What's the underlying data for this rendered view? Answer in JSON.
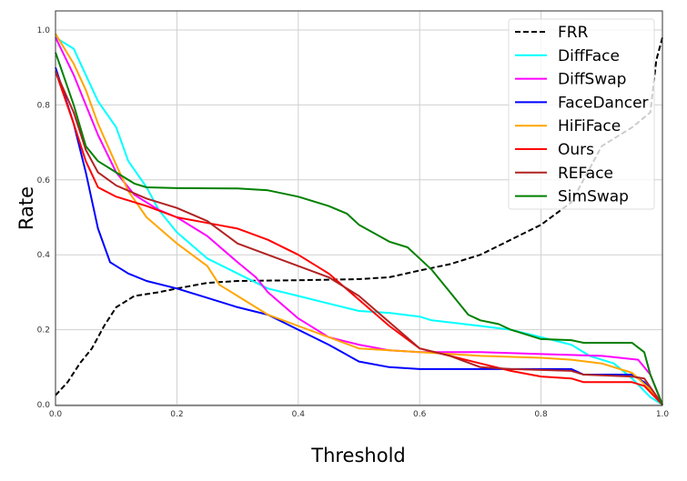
{
  "chart_data": {
    "type": "line",
    "title": "",
    "xlabel": "Threshold",
    "ylabel": "Rate",
    "xlim": [
      0,
      1
    ],
    "ylim": [
      0,
      1.05
    ],
    "xticks": [
      "0.0",
      "0.2",
      "0.4",
      "0.6",
      "0.8",
      "1.0"
    ],
    "yticks": [
      "0.0",
      "0.2",
      "0.4",
      "0.6",
      "0.8",
      "1.0"
    ],
    "grid": true,
    "legend_position": "top-right",
    "series": [
      {
        "name": "FRR",
        "color": "#000000",
        "dashed": true,
        "x": [
          0,
          0.02,
          0.04,
          0.06,
          0.08,
          0.1,
          0.13,
          0.17,
          0.2,
          0.25,
          0.3,
          0.4,
          0.5,
          0.55,
          0.6,
          0.65,
          0.7,
          0.75,
          0.8,
          0.85,
          0.9,
          0.95,
          0.98,
          0.99,
          1.0
        ],
        "y": [
          0.025,
          0.06,
          0.11,
          0.15,
          0.21,
          0.26,
          0.29,
          0.3,
          0.31,
          0.325,
          0.33,
          0.332,
          0.335,
          0.34,
          0.358,
          0.375,
          0.4,
          0.44,
          0.48,
          0.54,
          0.69,
          0.74,
          0.78,
          0.92,
          0.98
        ]
      },
      {
        "name": "DiffFace",
        "color": "#00ffff",
        "x": [
          0,
          0.03,
          0.05,
          0.07,
          0.1,
          0.12,
          0.15,
          0.17,
          0.2,
          0.25,
          0.3,
          0.35,
          0.4,
          0.45,
          0.5,
          0.55,
          0.6,
          0.62,
          0.7,
          0.75,
          0.8,
          0.85,
          0.88,
          0.92,
          0.95,
          0.98,
          1.0
        ],
        "y": [
          0.98,
          0.95,
          0.88,
          0.81,
          0.74,
          0.65,
          0.58,
          0.52,
          0.46,
          0.39,
          0.35,
          0.31,
          0.29,
          0.27,
          0.25,
          0.245,
          0.235,
          0.225,
          0.21,
          0.2,
          0.18,
          0.16,
          0.13,
          0.11,
          0.07,
          0.02,
          0.0
        ]
      },
      {
        "name": "DiffSwap",
        "color": "#ff00ff",
        "x": [
          0,
          0.03,
          0.05,
          0.07,
          0.1,
          0.13,
          0.17,
          0.2,
          0.25,
          0.3,
          0.33,
          0.35,
          0.4,
          0.45,
          0.5,
          0.55,
          0.6,
          0.7,
          0.8,
          0.9,
          0.96,
          0.98,
          1.0
        ],
        "y": [
          0.98,
          0.88,
          0.8,
          0.72,
          0.62,
          0.56,
          0.52,
          0.5,
          0.45,
          0.38,
          0.34,
          0.3,
          0.23,
          0.18,
          0.16,
          0.145,
          0.14,
          0.14,
          0.135,
          0.13,
          0.12,
          0.08,
          0.0
        ]
      },
      {
        "name": "FaceDancer",
        "color": "#0000ff",
        "x": [
          0,
          0.03,
          0.05,
          0.07,
          0.09,
          0.12,
          0.15,
          0.2,
          0.25,
          0.3,
          0.35,
          0.4,
          0.45,
          0.5,
          0.55,
          0.6,
          0.7,
          0.85,
          0.87,
          0.95,
          0.97,
          1.0
        ],
        "y": [
          0.9,
          0.75,
          0.62,
          0.47,
          0.38,
          0.35,
          0.33,
          0.31,
          0.285,
          0.26,
          0.24,
          0.2,
          0.16,
          0.115,
          0.1,
          0.095,
          0.095,
          0.095,
          0.08,
          0.08,
          0.06,
          0.0
        ]
      },
      {
        "name": "HiFiFace",
        "color": "#ffa500",
        "x": [
          0,
          0.03,
          0.05,
          0.07,
          0.1,
          0.12,
          0.15,
          0.2,
          0.25,
          0.27,
          0.3,
          0.35,
          0.4,
          0.45,
          0.5,
          0.55,
          0.6,
          0.7,
          0.8,
          0.85,
          0.9,
          0.95,
          0.98,
          1.0
        ],
        "y": [
          0.99,
          0.91,
          0.84,
          0.75,
          0.64,
          0.57,
          0.5,
          0.43,
          0.37,
          0.32,
          0.29,
          0.24,
          0.21,
          0.18,
          0.15,
          0.145,
          0.14,
          0.13,
          0.125,
          0.12,
          0.11,
          0.085,
          0.04,
          0.0
        ]
      },
      {
        "name": "Ours",
        "color": "#ff0000",
        "x": [
          0,
          0.03,
          0.05,
          0.07,
          0.1,
          0.15,
          0.2,
          0.25,
          0.3,
          0.35,
          0.4,
          0.45,
          0.5,
          0.55,
          0.6,
          0.65,
          0.7,
          0.75,
          0.8,
          0.85,
          0.87,
          0.95,
          0.97,
          1.0
        ],
        "y": [
          0.89,
          0.75,
          0.65,
          0.58,
          0.555,
          0.53,
          0.5,
          0.485,
          0.47,
          0.44,
          0.4,
          0.35,
          0.28,
          0.21,
          0.15,
          0.13,
          0.11,
          0.09,
          0.075,
          0.07,
          0.06,
          0.06,
          0.05,
          0.0
        ]
      },
      {
        "name": "REFace",
        "color": "#b22222",
        "x": [
          0,
          0.03,
          0.05,
          0.07,
          0.1,
          0.15,
          0.2,
          0.25,
          0.3,
          0.35,
          0.4,
          0.45,
          0.5,
          0.55,
          0.6,
          0.65,
          0.7,
          0.75,
          0.85,
          0.87,
          0.95,
          0.97,
          1.0
        ],
        "y": [
          0.89,
          0.78,
          0.68,
          0.62,
          0.585,
          0.55,
          0.525,
          0.49,
          0.43,
          0.4,
          0.37,
          0.34,
          0.29,
          0.22,
          0.15,
          0.13,
          0.1,
          0.095,
          0.09,
          0.08,
          0.075,
          0.07,
          0.0
        ]
      },
      {
        "name": "SimSwap",
        "color": "#008000",
        "x": [
          0,
          0.03,
          0.05,
          0.07,
          0.1,
          0.13,
          0.15,
          0.2,
          0.3,
          0.35,
          0.4,
          0.45,
          0.48,
          0.5,
          0.55,
          0.58,
          0.6,
          0.62,
          0.65,
          0.68,
          0.7,
          0.73,
          0.75,
          0.8,
          0.85,
          0.87,
          0.95,
          0.97,
          0.98,
          1.0
        ],
        "y": [
          0.94,
          0.8,
          0.69,
          0.65,
          0.62,
          0.59,
          0.58,
          0.578,
          0.577,
          0.572,
          0.555,
          0.53,
          0.51,
          0.48,
          0.435,
          0.42,
          0.39,
          0.36,
          0.3,
          0.24,
          0.225,
          0.215,
          0.2,
          0.175,
          0.172,
          0.165,
          0.165,
          0.14,
          0.08,
          0.0
        ]
      }
    ]
  }
}
